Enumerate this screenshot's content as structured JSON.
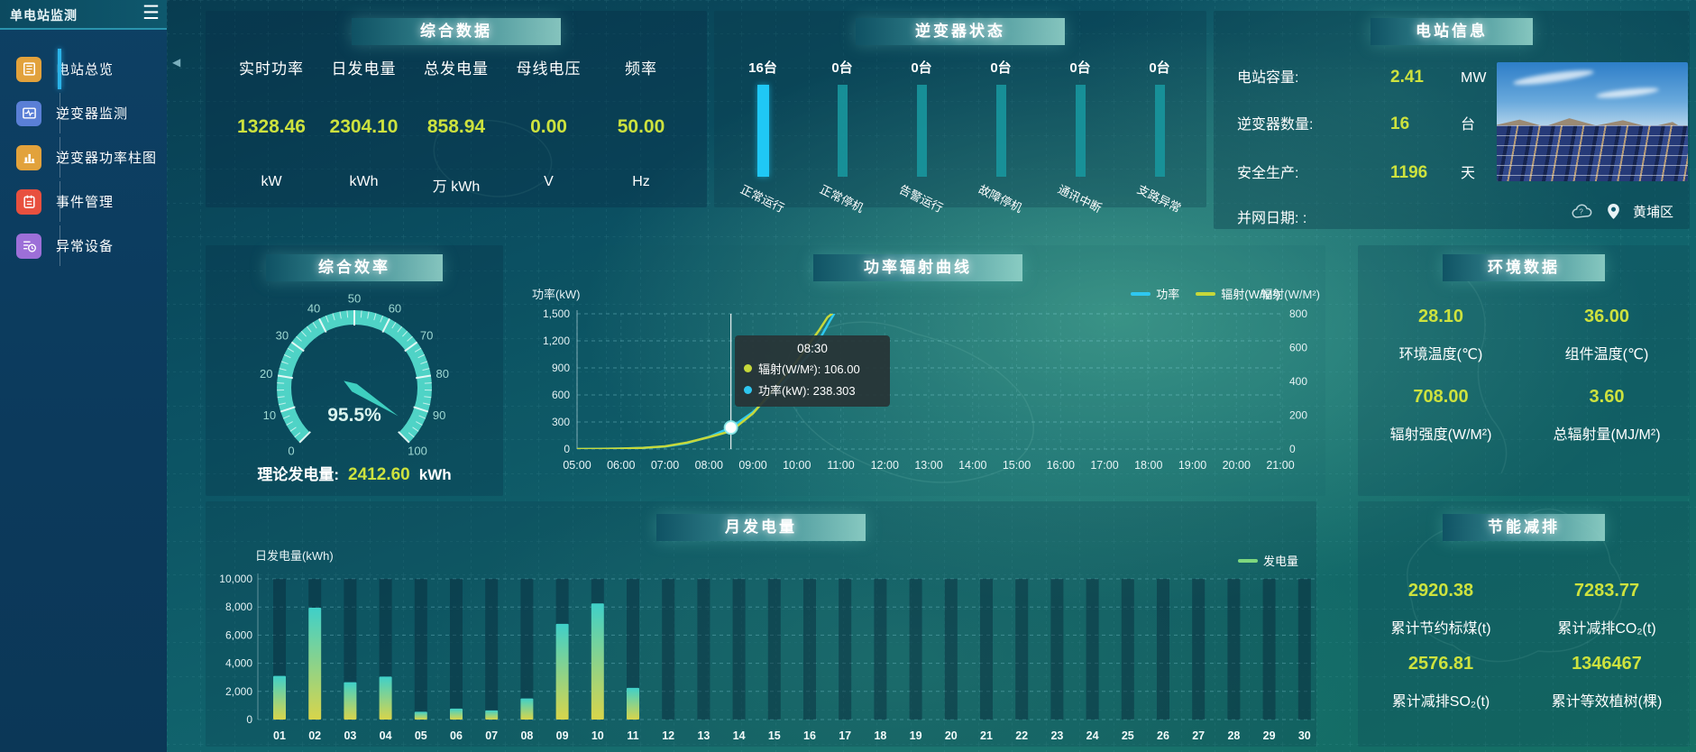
{
  "colors": {
    "accent_yellow": "#cde23e",
    "accent_cyan": "#1fc8f5",
    "inactive_teal": "#18959c",
    "line_power": "#2ec7f0",
    "line_radiation": "#c6d83a",
    "bar_top": "#3fd0c9",
    "bar_bottom": "#d8d54b",
    "legend_green": "#7ed87e",
    "gauge": "#4fd3c6"
  },
  "sidebar": {
    "title": "单电站监测",
    "menu_icon": "hamburger-icon",
    "items": [
      {
        "key": "station-overview",
        "label": "电站总览",
        "icon": "news-icon",
        "color": "#e2a23c",
        "active": true
      },
      {
        "key": "inverter-monitor",
        "label": "逆变器监测",
        "icon": "pulse-icon",
        "color": "#5a7fd6",
        "active": false
      },
      {
        "key": "inverter-power-bars",
        "label": "逆变器功率柱图",
        "icon": "bar-chart-icon",
        "color": "#e2a23c",
        "active": false
      },
      {
        "key": "event-management",
        "label": "事件管理",
        "icon": "event-icon",
        "color": "#e8503f",
        "active": false
      },
      {
        "key": "abnormal-devices",
        "label": "异常设备",
        "icon": "device-clock-icon",
        "color": "#9d6fd8",
        "active": false
      }
    ]
  },
  "overview": {
    "title": "综合数据",
    "stats": [
      {
        "label": "实时功率",
        "value": "1328.46",
        "unit": "kW"
      },
      {
        "label": "日发电量",
        "value": "2304.10",
        "unit": "kWh"
      },
      {
        "label": "总发电量",
        "value": "858.94",
        "unit": "万 kWh"
      },
      {
        "label": "母线电压",
        "value": "0.00",
        "unit": "V"
      },
      {
        "label": "频率",
        "value": "50.00",
        "unit": "Hz"
      }
    ]
  },
  "inverter_status": {
    "title": "逆变器状态",
    "unit_suffix": "台",
    "items": [
      {
        "key": "normal-running",
        "label": "正常运行",
        "count": 16,
        "active": true
      },
      {
        "key": "normal-shutdown",
        "label": "正常停机",
        "count": 0,
        "active": false
      },
      {
        "key": "alarm-running",
        "label": "告警运行",
        "count": 0,
        "active": false
      },
      {
        "key": "fault-shutdown",
        "label": "故障停机",
        "count": 0,
        "active": false
      },
      {
        "key": "comm-interrupted",
        "label": "通讯中断",
        "count": 0,
        "active": false
      },
      {
        "key": "branch-abnormal",
        "label": "支路异常",
        "count": 0,
        "active": false
      }
    ]
  },
  "station_info": {
    "title": "电站信息",
    "rows": [
      {
        "label": "电站容量:",
        "value": "2.41",
        "unit": "MW"
      },
      {
        "label": "逆变器数量:",
        "value": "16",
        "unit": "台"
      },
      {
        "label": "安全生产:",
        "value": "1196",
        "unit": "天"
      },
      {
        "label": "并网日期: :",
        "value": "",
        "unit": ""
      }
    ],
    "weather_icon": "cloud-icon",
    "location_icon": "location-pin-icon",
    "location": "黄埔区"
  },
  "efficiency": {
    "title": "综合效率",
    "theoretical_label": "理论发电量:",
    "theoretical_value": "2412.60",
    "theoretical_unit": "kWh"
  },
  "environment": {
    "title": "环境数据",
    "cells": [
      {
        "value": "28.10",
        "label": "环境温度(℃)"
      },
      {
        "value": "36.00",
        "label": "组件温度(℃)"
      },
      {
        "value": "708.00",
        "label": "辐射强度(W/M²)"
      },
      {
        "value": "3.60",
        "label": "总辐射量(MJ/M²)"
      }
    ]
  },
  "savings": {
    "title": "节能减排",
    "cells": [
      {
        "value": "2920.38",
        "label": "累计节约标煤(t)"
      },
      {
        "value": "7283.77",
        "label": "累计减排CO₂(t)"
      },
      {
        "value": "2576.81",
        "label": "累计减排SO₂(t)"
      },
      {
        "value": "1346467",
        "label": "累计等效植树(棵)"
      }
    ]
  },
  "chart_data": [
    {
      "id": "efficiency_gauge",
      "type": "gauge",
      "min": 0,
      "max": 100,
      "value": 95.5,
      "display": "95.5%",
      "tick_step": 10,
      "color": "#4fd3c6"
    },
    {
      "id": "power_radiation",
      "type": "line",
      "title": "功率辐射曲线",
      "ylabel_left": "功率(kW)",
      "ylabel_right": "辐射(W/M²)",
      "ylim_left": [
        0,
        1500
      ],
      "yticks_left": [
        0,
        300,
        600,
        900,
        1200,
        1500
      ],
      "ylim_right": [
        0,
        800
      ],
      "yticks_right": [
        0,
        200,
        400,
        600,
        800
      ],
      "x_ticks": [
        "05:00",
        "06:00",
        "07:00",
        "08:00",
        "09:00",
        "10:00",
        "11:00",
        "12:00",
        "13:00",
        "14:00",
        "15:00",
        "16:00",
        "17:00",
        "18:00",
        "19:00",
        "20:00",
        "21:00"
      ],
      "x_range_hours": [
        5,
        21
      ],
      "grid": "dashed",
      "legend_position": "top-right",
      "series": [
        {
          "name": "功率",
          "axis": "left",
          "color": "#2ec7f0",
          "x": [
            5,
            5.5,
            6,
            6.5,
            7,
            7.5,
            8,
            8.5,
            9,
            9.5,
            10,
            10.25,
            10.5,
            10.75,
            10.85
          ],
          "values": [
            0,
            2,
            5,
            12,
            28,
            65,
            135,
            238.3,
            410,
            640,
            900,
            1030,
            1200,
            1420,
            1500
          ]
        },
        {
          "name": "辐射(W/M²)",
          "axis": "right",
          "color": "#c6d83a",
          "x": [
            5,
            5.5,
            6,
            6.5,
            7,
            7.5,
            8,
            8.5,
            9,
            9.5,
            10,
            10.25,
            10.5,
            10.7,
            10.8
          ],
          "values": [
            0,
            1,
            3,
            7,
            16,
            38,
            70,
            106,
            210,
            360,
            520,
            610,
            700,
            780,
            800
          ]
        }
      ],
      "tooltip": {
        "time": "08:30",
        "x_hour": 8.5,
        "rows": [
          {
            "color": "#c6d83a",
            "text": "辐射(W/M²): 106.00"
          },
          {
            "color": "#2ec7f0",
            "text": "功率(kW): 238.303"
          }
        ],
        "marker_value_kw": 238.303
      }
    },
    {
      "id": "monthly_generation",
      "type": "bar",
      "title": "月发电量",
      "ylabel": "日发电量(kWh)",
      "legend": "发电量",
      "ylim": [
        0,
        10000
      ],
      "yticks": [
        0,
        2000,
        4000,
        6000,
        8000,
        10000
      ],
      "categories": [
        "01",
        "02",
        "03",
        "04",
        "05",
        "06",
        "07",
        "08",
        "09",
        "10",
        "11",
        "12",
        "13",
        "14",
        "15",
        "16",
        "17",
        "18",
        "19",
        "20",
        "21",
        "22",
        "23",
        "24",
        "25",
        "26",
        "27",
        "28",
        "29",
        "30"
      ],
      "values": [
        3100,
        7950,
        2650,
        3050,
        550,
        780,
        650,
        1500,
        6800,
        8250,
        2250,
        0,
        0,
        0,
        0,
        0,
        0,
        0,
        0,
        0,
        0,
        0,
        0,
        0,
        0,
        0,
        0,
        0,
        0,
        0
      ]
    }
  ]
}
